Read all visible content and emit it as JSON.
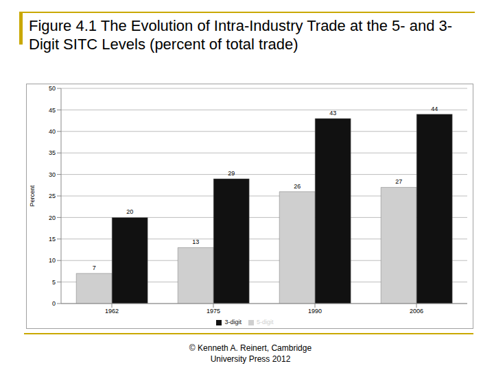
{
  "chart_data": {
    "type": "bar",
    "title": "Figure 4.1 The Evolution of Intra-Industry Trade at the 5- and 3-Digit SITC Levels (percent of total trade)",
    "source": "© Kenneth A. Reinert, Cambridge University Press 2012",
    "y_label": "Percent",
    "categories": [
      "1962",
      "1975",
      "1990",
      "2006"
    ],
    "series": [
      {
        "name": "5-digit",
        "color": "#cfcfcf",
        "values": [
          7,
          13,
          26,
          27
        ]
      },
      {
        "name": "3-digit",
        "color": "#111111",
        "values": [
          20,
          29,
          43,
          44
        ]
      }
    ],
    "ylim": [
      0,
      50
    ],
    "yticks": [
      0,
      5,
      10,
      15,
      20,
      25,
      30,
      35,
      40,
      45,
      50
    ],
    "grid": true,
    "legend": "bottom",
    "data_labels": true
  }
}
